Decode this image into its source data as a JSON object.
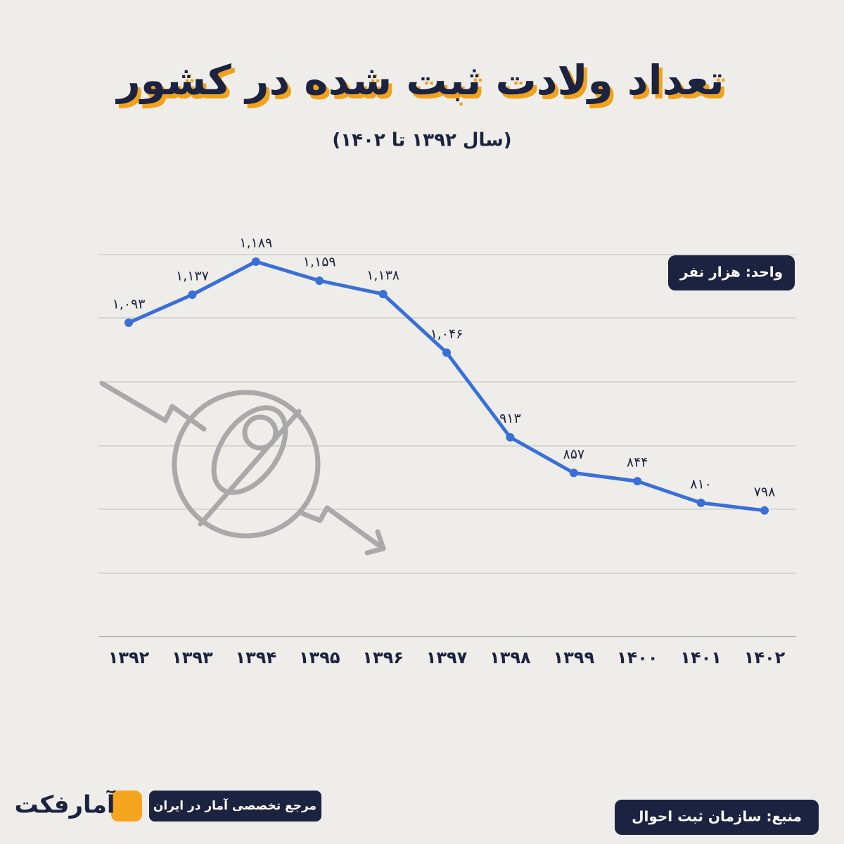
{
  "chart_data": {
    "type": "line",
    "title": "تعداد ولادت ثبت شده در کشور",
    "subtitle": "(سال ۱۳۹۲ تا ۱۴۰۲)",
    "unit_label": "واحد: هزار نفر",
    "categories": [
      "۱۳۹۲",
      "۱۳۹۳",
      "۱۳۹۴",
      "۱۳۹۵",
      "۱۳۹۶",
      "۱۳۹۷",
      "۱۳۹۸",
      "۱۳۹۹",
      "۱۴۰۰",
      "۱۴۰۱",
      "۱۴۰۲"
    ],
    "values": [
      1093,
      1137,
      1189,
      1159,
      1138,
      1046,
      913,
      857,
      844,
      810,
      798
    ],
    "value_labels": [
      "۱,۰۹۳",
      "۱,۱۳۷",
      "۱,۱۸۹",
      "۱,۱۵۹",
      "۱,۱۳۸",
      "۱,۰۴۶",
      "۹۱۳",
      "۸۵۷",
      "۸۴۴",
      "۸۱۰",
      "۷۹۸"
    ],
    "color": "#3a6fd8",
    "ylim": [
      600,
      1200
    ]
  },
  "source": "منبع: سازمان ثبت احوال",
  "brand": {
    "name": "آمارفکت",
    "tagline": "مرجع تخصصی آمار در ایران"
  }
}
